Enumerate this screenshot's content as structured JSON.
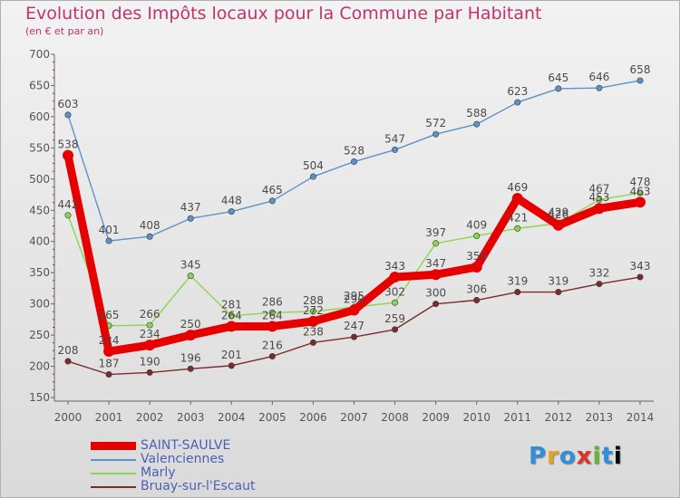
{
  "chart_data": {
    "type": "line",
    "title": "Evolution des Impôts locaux pour la Commune par Habitant",
    "subtitle": "(en € et par an)",
    "x": [
      "2000",
      "2001",
      "2002",
      "2003",
      "2004",
      "2005",
      "2006",
      "2007",
      "2008",
      "2009",
      "2010",
      "2011",
      "2012",
      "2013",
      "2014"
    ],
    "y_ticks": [
      "150",
      "200",
      "250",
      "300",
      "350",
      "400",
      "450",
      "500",
      "550",
      "600",
      "650",
      "700"
    ],
    "ylim": [
      150,
      700
    ],
    "series": [
      {
        "name": "SAINT-SAULVE",
        "color": "#e60000",
        "values": [
          538,
          224,
          234,
          250,
          264,
          264,
          272,
          290,
          343,
          347,
          359,
          469,
          426,
          453,
          463
        ],
        "labels": [
          "538",
          "224",
          "234",
          "250",
          "264",
          "264",
          "272",
          "290",
          "343",
          "347",
          "359",
          "469",
          "426",
          "453",
          "463"
        ]
      },
      {
        "name": "Valenciennes",
        "color": "#5b93c9",
        "values": [
          603,
          401,
          408,
          437,
          448,
          465,
          504,
          528,
          547,
          572,
          588,
          623,
          645,
          646,
          658
        ],
        "labels": [
          "603",
          "401",
          "408",
          "437",
          "448",
          "465",
          "504",
          "528",
          "547",
          "572",
          "588",
          "623",
          "645",
          "646",
          "658"
        ]
      },
      {
        "name": "Marly",
        "color": "#8ed44e",
        "values": [
          442,
          265,
          266,
          345,
          281,
          286,
          288,
          295,
          302,
          397,
          409,
          421,
          429,
          467,
          478
        ],
        "labels": [
          "442",
          "265",
          "266",
          "345",
          "281",
          "286",
          "288",
          "295",
          "302",
          "397",
          "409",
          "421",
          "429",
          "467",
          "478"
        ]
      },
      {
        "name": "Bruay-sur-l'Escaut",
        "color": "#7b2b2b",
        "values": [
          208,
          187,
          190,
          196,
          201,
          216,
          238,
          247,
          259,
          300,
          306,
          319,
          319,
          332,
          343
        ],
        "labels": [
          "208",
          "187",
          "190",
          "196",
          "201",
          "216",
          "238",
          "247",
          "259",
          "300",
          "306",
          "319",
          "319",
          "332",
          "343"
        ]
      }
    ],
    "legend_position": "bottom-left",
    "grid": false
  },
  "brand": {
    "letters": [
      "P",
      "r",
      "o",
      "x",
      "i",
      "t",
      "i"
    ]
  }
}
